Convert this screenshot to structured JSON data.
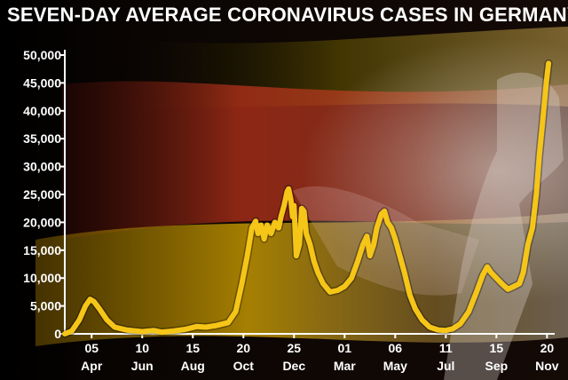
{
  "chart_data": {
    "type": "line",
    "title": "SEVEN-DAY AVERAGE CORONAVIRUS CASES IN GERMANY",
    "xlabel": "",
    "ylabel": "",
    "ylim": [
      0,
      50000
    ],
    "y_ticks": [
      "0",
      "5,000",
      "10,000",
      "15,000",
      "20,000",
      "25,000",
      "30,000",
      "35,000",
      "40,000",
      "45,000",
      "50,000"
    ],
    "y_tick_values": [
      0,
      5000,
      10000,
      15000,
      20000,
      25000,
      30000,
      35000,
      40000,
      45000,
      50000
    ],
    "x_ticks": [
      {
        "day": "05",
        "month": "Apr",
        "date": "2020-04-05"
      },
      {
        "day": "10",
        "month": "Jun",
        "date": "2020-06-10"
      },
      {
        "day": "15",
        "month": "Aug",
        "date": "2020-08-15"
      },
      {
        "day": "20",
        "month": "Oct",
        "date": "2020-10-20"
      },
      {
        "day": "25",
        "month": "Dec",
        "date": "2020-12-25"
      },
      {
        "day": "01",
        "month": "Mar",
        "date": "2021-03-01"
      },
      {
        "day": "06",
        "month": "May",
        "date": "2021-05-06"
      },
      {
        "day": "11",
        "month": "Jul",
        "date": "2021-07-11"
      },
      {
        "day": "15",
        "month": "Sep",
        "date": "2021-09-15"
      },
      {
        "day": "20",
        "month": "Nov",
        "date": "2021-11-20"
      }
    ],
    "xlim": [
      "2020-03-01",
      "2021-11-30"
    ],
    "grid": false,
    "series": [
      {
        "color": "#F5C518",
        "points": [
          [
            "2020-03-01",
            0
          ],
          [
            "2020-03-10",
            500
          ],
          [
            "2020-03-20",
            2500
          ],
          [
            "2020-03-28",
            5000
          ],
          [
            "2020-04-03",
            6200
          ],
          [
            "2020-04-08",
            5800
          ],
          [
            "2020-04-15",
            4500
          ],
          [
            "2020-04-25",
            2500
          ],
          [
            "2020-05-05",
            1200
          ],
          [
            "2020-05-20",
            700
          ],
          [
            "2020-06-10",
            400
          ],
          [
            "2020-06-25",
            600
          ],
          [
            "2020-07-05",
            300
          ],
          [
            "2020-07-20",
            500
          ],
          [
            "2020-08-05",
            800
          ],
          [
            "2020-08-20",
            1300
          ],
          [
            "2020-09-01",
            1200
          ],
          [
            "2020-09-15",
            1500
          ],
          [
            "2020-09-30",
            2000
          ],
          [
            "2020-10-10",
            4000
          ],
          [
            "2020-10-18",
            9000
          ],
          [
            "2020-10-25",
            14000
          ],
          [
            "2020-10-31",
            19000
          ],
          [
            "2020-11-05",
            20200
          ],
          [
            "2020-11-08",
            18000
          ],
          [
            "2020-11-12",
            19500
          ],
          [
            "2020-11-16",
            17000
          ],
          [
            "2020-11-20",
            19500
          ],
          [
            "2020-11-25",
            18000
          ],
          [
            "2020-11-30",
            20000
          ],
          [
            "2020-12-05",
            19000
          ],
          [
            "2020-12-08",
            21000
          ],
          [
            "2020-12-12",
            23000
          ],
          [
            "2020-12-16",
            25500
          ],
          [
            "2020-12-18",
            26000
          ],
          [
            "2020-12-21",
            24000
          ],
          [
            "2020-12-23",
            21000
          ],
          [
            "2020-12-25",
            23000
          ],
          [
            "2020-12-28",
            14000
          ],
          [
            "2021-01-01",
            16000
          ],
          [
            "2021-01-04",
            22500
          ],
          [
            "2021-01-07",
            22000
          ],
          [
            "2021-01-10",
            18000
          ],
          [
            "2021-01-15",
            16000
          ],
          [
            "2021-01-20",
            13000
          ],
          [
            "2021-01-25",
            11000
          ],
          [
            "2021-02-01",
            9000
          ],
          [
            "2021-02-10",
            7500
          ],
          [
            "2021-02-20",
            7800
          ],
          [
            "2021-03-01",
            8500
          ],
          [
            "2021-03-10",
            10000
          ],
          [
            "2021-03-18",
            13000
          ],
          [
            "2021-03-25",
            16000
          ],
          [
            "2021-03-30",
            17500
          ],
          [
            "2021-04-03",
            14000
          ],
          [
            "2021-04-08",
            16000
          ],
          [
            "2021-04-12",
            19000
          ],
          [
            "2021-04-18",
            21500
          ],
          [
            "2021-04-22",
            22000
          ],
          [
            "2021-04-26",
            20000
          ],
          [
            "2021-05-01",
            19000
          ],
          [
            "2021-05-06",
            17000
          ],
          [
            "2021-05-12",
            14000
          ],
          [
            "2021-05-18",
            11000
          ],
          [
            "2021-05-25",
            7000
          ],
          [
            "2021-06-01",
            4500
          ],
          [
            "2021-06-10",
            2500
          ],
          [
            "2021-06-20",
            1200
          ],
          [
            "2021-07-01",
            700
          ],
          [
            "2021-07-11",
            600
          ],
          [
            "2021-07-20",
            900
          ],
          [
            "2021-07-30",
            1800
          ],
          [
            "2021-08-10",
            4000
          ],
          [
            "2021-08-20",
            7500
          ],
          [
            "2021-08-28",
            10500
          ],
          [
            "2021-09-03",
            12000
          ],
          [
            "2021-09-08",
            11000
          ],
          [
            "2021-09-15",
            10000
          ],
          [
            "2021-09-22",
            9000
          ],
          [
            "2021-09-30",
            8000
          ],
          [
            "2021-10-08",
            8500
          ],
          [
            "2021-10-15",
            9000
          ],
          [
            "2021-10-20",
            11000
          ],
          [
            "2021-10-26",
            16000
          ],
          [
            "2021-11-01",
            19000
          ],
          [
            "2021-11-06",
            25000
          ],
          [
            "2021-11-10",
            32000
          ],
          [
            "2021-11-15",
            39000
          ],
          [
            "2021-11-19",
            45000
          ],
          [
            "2021-11-22",
            48500
          ]
        ]
      }
    ]
  }
}
